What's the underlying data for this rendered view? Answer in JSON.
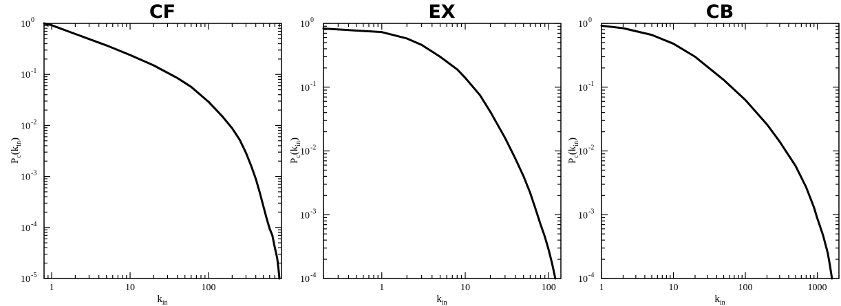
{
  "chart_data": [
    {
      "type": "line",
      "title": "CF",
      "xlabel": "k",
      "xlabel_sub": "in",
      "ylabel": "P",
      "ylabel_sub1": "c",
      "ylabel_mid": "(k",
      "ylabel_sub2": "in",
      "ylabel_end": ")",
      "xscale": "log",
      "yscale": "log",
      "xlim": [
        0.8,
        850
      ],
      "ylim": [
        1e-05,
        1
      ],
      "xticks": [
        {
          "v": 1,
          "label": "1"
        },
        {
          "v": 10,
          "label": "10"
        },
        {
          "v": 100,
          "label": "100"
        }
      ],
      "yticks": [
        {
          "v": 1,
          "mant": "10",
          "exp": "0"
        },
        {
          "v": 0.1,
          "mant": "10",
          "exp": "-1"
        },
        {
          "v": 0.01,
          "mant": "10",
          "exp": "-2"
        },
        {
          "v": 0.001,
          "mant": "10",
          "exp": "-3"
        },
        {
          "v": 0.0001,
          "mant": "10",
          "exp": "-4"
        },
        {
          "v": 1e-05,
          "mant": "10",
          "exp": "-5"
        }
      ],
      "color": "#000000",
      "x": [
        0.8,
        1,
        2,
        5,
        10,
        20,
        40,
        60,
        100,
        150,
        200,
        250,
        300,
        350,
        400,
        450,
        500,
        550,
        600,
        650,
        700,
        750,
        780,
        800
      ],
      "y": [
        1.0,
        0.92,
        0.62,
        0.37,
        0.24,
        0.15,
        0.085,
        0.057,
        0.029,
        0.015,
        0.0088,
        0.0052,
        0.0029,
        0.0016,
        0.0009,
        0.00048,
        0.00026,
        0.00015,
        9.5e-05,
        7e-05,
        4e-05,
        2.5e-05,
        1.5e-05,
        1e-05
      ]
    },
    {
      "type": "line",
      "title": "EX",
      "xlabel": "k",
      "xlabel_sub": "in",
      "ylabel": "P",
      "ylabel_sub1": "c",
      "ylabel_mid": "(k",
      "ylabel_sub2": "in",
      "ylabel_end": ")",
      "xscale": "log",
      "yscale": "log",
      "xlim": [
        0.2,
        140
      ],
      "ylim": [
        0.0001,
        1
      ],
      "xticks": [
        {
          "v": 1,
          "label": "1"
        },
        {
          "v": 10,
          "label": "10"
        },
        {
          "v": 100,
          "label": "100"
        }
      ],
      "yticks": [
        {
          "v": 1,
          "mant": "10",
          "exp": "0"
        },
        {
          "v": 0.1,
          "mant": "10",
          "exp": "-1"
        },
        {
          "v": 0.01,
          "mant": "10",
          "exp": "-2"
        },
        {
          "v": 0.001,
          "mant": "10",
          "exp": "-3"
        },
        {
          "v": 0.0001,
          "mant": "10",
          "exp": "-4"
        }
      ],
      "color": "#000000",
      "x": [
        0.2,
        1,
        2,
        3,
        5,
        8,
        10,
        15,
        20,
        30,
        40,
        50,
        60,
        70,
        80,
        90,
        100,
        110,
        115,
        120
      ],
      "y": [
        0.83,
        0.73,
        0.58,
        0.46,
        0.3,
        0.19,
        0.14,
        0.075,
        0.041,
        0.016,
        0.0075,
        0.004,
        0.0022,
        0.0012,
        0.0007,
        0.00045,
        0.00028,
        0.00017,
        0.00013,
        0.0001
      ]
    },
    {
      "type": "line",
      "title": "CB",
      "xlabel": "k",
      "xlabel_sub": "in",
      "ylabel": "P",
      "ylabel_sub1": "c",
      "ylabel_mid": "(k",
      "ylabel_sub2": "in",
      "ylabel_end": ")",
      "xscale": "log",
      "yscale": "log",
      "xlim": [
        1,
        2000
      ],
      "ylim": [
        0.0001,
        1
      ],
      "xticks": [
        {
          "v": 1,
          "label": "1"
        },
        {
          "v": 10,
          "label": "10"
        },
        {
          "v": 100,
          "label": "100"
        },
        {
          "v": 1000,
          "label": "1000"
        }
      ],
      "yticks": [
        {
          "v": 1,
          "mant": "10",
          "exp": "0"
        },
        {
          "v": 0.1,
          "mant": "10",
          "exp": "-1"
        },
        {
          "v": 0.01,
          "mant": "10",
          "exp": "-2"
        },
        {
          "v": 0.001,
          "mant": "10",
          "exp": "-3"
        },
        {
          "v": 0.0001,
          "mant": "10",
          "exp": "-4"
        }
      ],
      "color": "#000000",
      "x": [
        1,
        2,
        5,
        10,
        20,
        50,
        100,
        200,
        300,
        500,
        700,
        900,
        1000,
        1200,
        1400,
        1500,
        1600
      ],
      "y": [
        0.92,
        0.84,
        0.66,
        0.48,
        0.3,
        0.13,
        0.063,
        0.026,
        0.014,
        0.0058,
        0.0027,
        0.0013,
        0.00088,
        0.00048,
        0.00025,
        0.00016,
        0.0001
      ]
    }
  ]
}
